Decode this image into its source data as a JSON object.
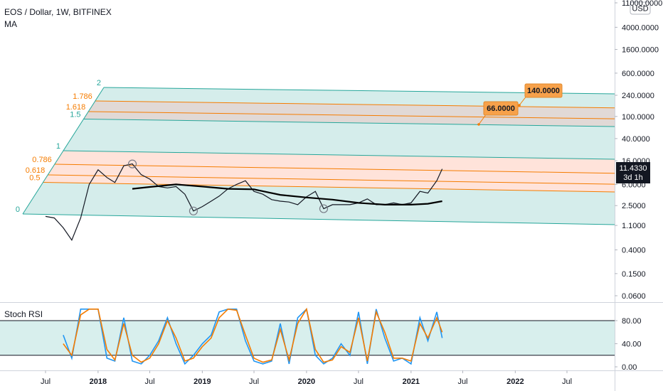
{
  "header": {
    "symbol_title": "EOS / Dollar, 1W, BITFINEX",
    "indicator": "MA",
    "currency": "USD"
  },
  "price_badge": {
    "value": "11.4330",
    "countdown": "3d 1h",
    "color": "#131722"
  },
  "callouts": [
    {
      "label": "140.0000",
      "color": "#f7a14a"
    },
    {
      "label": "66.0000",
      "color": "#f7a14a"
    }
  ],
  "lower_pane": {
    "title": "Stoch RSI",
    "band": [
      20,
      80
    ],
    "colors": {
      "k": "#2196f3",
      "d": "#f57c00",
      "band_fill": "#b2dfdb"
    }
  },
  "chart_data": [
    {
      "type": "line",
      "yscale": "log",
      "y_ticks": [
        "0.0600",
        "0.1500",
        "0.4000",
        "1.1000",
        "2.5000",
        "6.0000",
        "16.0000",
        "40.0000",
        "100.0000",
        "240.0000",
        "600.0000",
        "1600.0000",
        "4000.0000",
        "11000.0000"
      ],
      "y_tick_values": [
        0.06,
        0.15,
        0.4,
        1.1,
        2.5,
        6,
        16,
        40,
        100,
        240,
        600,
        1600,
        4000,
        11000
      ],
      "x_ticks": [
        "Jul",
        "2018",
        "Jul",
        "2019",
        "Jul",
        "2020",
        "Jul",
        "2021",
        "Jul",
        "2022",
        "Jul"
      ],
      "x_tick_dates": [
        "2017-07-01",
        "2018-01-01",
        "2018-07-01",
        "2019-01-01",
        "2019-07-01",
        "2020-01-01",
        "2020-07-01",
        "2021-01-01",
        "2021-07-01",
        "2022-01-01",
        "2022-07-01"
      ],
      "fib_channel": {
        "levels": [
          "0",
          "0.5",
          "0.618",
          "0.786",
          "1",
          "1.5",
          "1.618",
          "1.786",
          "2"
        ],
        "level_values": [
          0,
          0.5,
          0.618,
          0.786,
          1,
          1.5,
          1.618,
          1.786,
          2
        ],
        "colors": {
          "teal": "#26a69a",
          "orange": "#f57c00",
          "teal_fill": "#b2dfdb",
          "orange_fill": "#ffccbc",
          "brown_fill": "#d7ccc8"
        }
      },
      "series": [
        {
          "color": "#131722",
          "dates": [
            "2017-07-01",
            "2017-08-01",
            "2017-09-01",
            "2017-10-01",
            "2017-11-01",
            "2017-12-01",
            "2018-01-01",
            "2018-02-01",
            "2018-03-01",
            "2018-04-01",
            "2018-05-01",
            "2018-06-01",
            "2018-07-01",
            "2018-08-01",
            "2018-09-01",
            "2018-10-01",
            "2018-11-01",
            "2018-12-01",
            "2019-01-01",
            "2019-02-01",
            "2019-03-01",
            "2019-04-01",
            "2019-05-01",
            "2019-06-01",
            "2019-07-01",
            "2019-08-01",
            "2019-09-01",
            "2019-10-01",
            "2019-11-01",
            "2019-12-01",
            "2020-01-01",
            "2020-02-01",
            "2020-03-01",
            "2020-04-01",
            "2020-05-01",
            "2020-06-01",
            "2020-07-01",
            "2020-08-01",
            "2020-09-01",
            "2020-10-01",
            "2020-11-01",
            "2020-12-01",
            "2021-01-01",
            "2021-02-01",
            "2021-03-01",
            "2021-04-01",
            "2021-04-20"
          ],
          "values": [
            1.6,
            1.5,
            1.0,
            0.6,
            1.5,
            6.0,
            11.0,
            8.0,
            6.5,
            13.0,
            14.0,
            9.0,
            7.5,
            5.5,
            5.2,
            5.5,
            4.0,
            2.0,
            2.4,
            3.0,
            3.7,
            5.0,
            6.0,
            7.0,
            4.5,
            4.0,
            3.2,
            3.0,
            2.9,
            2.6,
            3.6,
            4.5,
            2.2,
            2.6,
            2.6,
            2.6,
            2.8,
            3.3,
            2.6,
            2.6,
            2.8,
            2.6,
            2.8,
            4.5,
            4.2,
            7.0,
            11.4
          ]
        },
        {
          "name": "MA",
          "color": "#000000",
          "dates": [
            "2018-05-01",
            "2018-07-01",
            "2018-10-01",
            "2019-01-01",
            "2019-04-01",
            "2019-07-01",
            "2019-10-01",
            "2020-01-01",
            "2020-04-01",
            "2020-07-01",
            "2020-10-01",
            "2021-01-01",
            "2021-03-01",
            "2021-04-20"
          ],
          "values": [
            5.0,
            5.4,
            6.0,
            5.5,
            5.0,
            4.9,
            3.9,
            3.5,
            3.2,
            2.8,
            2.6,
            2.6,
            2.7,
            3.0
          ]
        }
      ]
    },
    {
      "type": "line",
      "title": "Stoch RSI",
      "y_ticks": [
        "0.00",
        "40.00",
        "80.00"
      ],
      "y_tick_values": [
        0,
        40,
        80
      ],
      "ylim": [
        0,
        100
      ],
      "series": [
        {
          "color": "#2196f3",
          "dates": [
            "2017-09-01",
            "2017-10-01",
            "2017-11-01",
            "2017-12-01",
            "2018-01-01",
            "2018-02-01",
            "2018-03-01",
            "2018-04-01",
            "2018-05-01",
            "2018-06-01",
            "2018-07-01",
            "2018-08-01",
            "2018-09-01",
            "2018-10-01",
            "2018-11-01",
            "2018-12-01",
            "2019-01-01",
            "2019-02-01",
            "2019-03-01",
            "2019-04-01",
            "2019-05-01",
            "2019-06-01",
            "2019-07-01",
            "2019-08-01",
            "2019-09-01",
            "2019-10-01",
            "2019-11-01",
            "2019-12-01",
            "2020-01-01",
            "2020-02-01",
            "2020-03-01",
            "2020-04-01",
            "2020-05-01",
            "2020-06-01",
            "2020-07-01",
            "2020-08-01",
            "2020-09-01",
            "2020-10-01",
            "2020-11-01",
            "2020-12-01",
            "2021-01-01",
            "2021-02-01",
            "2021-03-01",
            "2021-04-01",
            "2021-04-20"
          ],
          "values": [
            55,
            15,
            100,
            100,
            100,
            15,
            10,
            85,
            10,
            5,
            20,
            45,
            85,
            40,
            5,
            20,
            40,
            55,
            95,
            100,
            100,
            45,
            10,
            5,
            10,
            75,
            5,
            85,
            100,
            20,
            5,
            15,
            40,
            20,
            95,
            5,
            100,
            50,
            10,
            15,
            5,
            85,
            45,
            95,
            50
          ]
        },
        {
          "color": "#f57c00",
          "dates": [
            "2017-09-01",
            "2017-10-01",
            "2017-11-01",
            "2017-12-01",
            "2018-01-01",
            "2018-02-01",
            "2018-03-01",
            "2018-04-01",
            "2018-05-01",
            "2018-06-01",
            "2018-07-01",
            "2018-08-01",
            "2018-09-01",
            "2018-10-01",
            "2018-11-01",
            "2018-12-01",
            "2019-01-01",
            "2019-02-01",
            "2019-03-01",
            "2019-04-01",
            "2019-05-01",
            "2019-06-01",
            "2019-07-01",
            "2019-08-01",
            "2019-09-01",
            "2019-10-01",
            "2019-11-01",
            "2019-12-01",
            "2020-01-01",
            "2020-02-01",
            "2020-03-01",
            "2020-04-01",
            "2020-05-01",
            "2020-06-01",
            "2020-07-01",
            "2020-08-01",
            "2020-09-01",
            "2020-10-01",
            "2020-11-01",
            "2020-12-01",
            "2021-01-01",
            "2021-02-01",
            "2021-03-01",
            "2021-04-01",
            "2021-04-20"
          ],
          "values": [
            40,
            20,
            90,
            100,
            100,
            30,
            12,
            75,
            20,
            8,
            15,
            40,
            80,
            50,
            10,
            15,
            35,
            50,
            85,
            100,
            98,
            55,
            15,
            8,
            12,
            65,
            12,
            75,
            100,
            30,
            8,
            12,
            35,
            25,
            85,
            10,
            95,
            60,
            15,
            15,
            10,
            75,
            50,
            85,
            60
          ]
        }
      ]
    }
  ]
}
